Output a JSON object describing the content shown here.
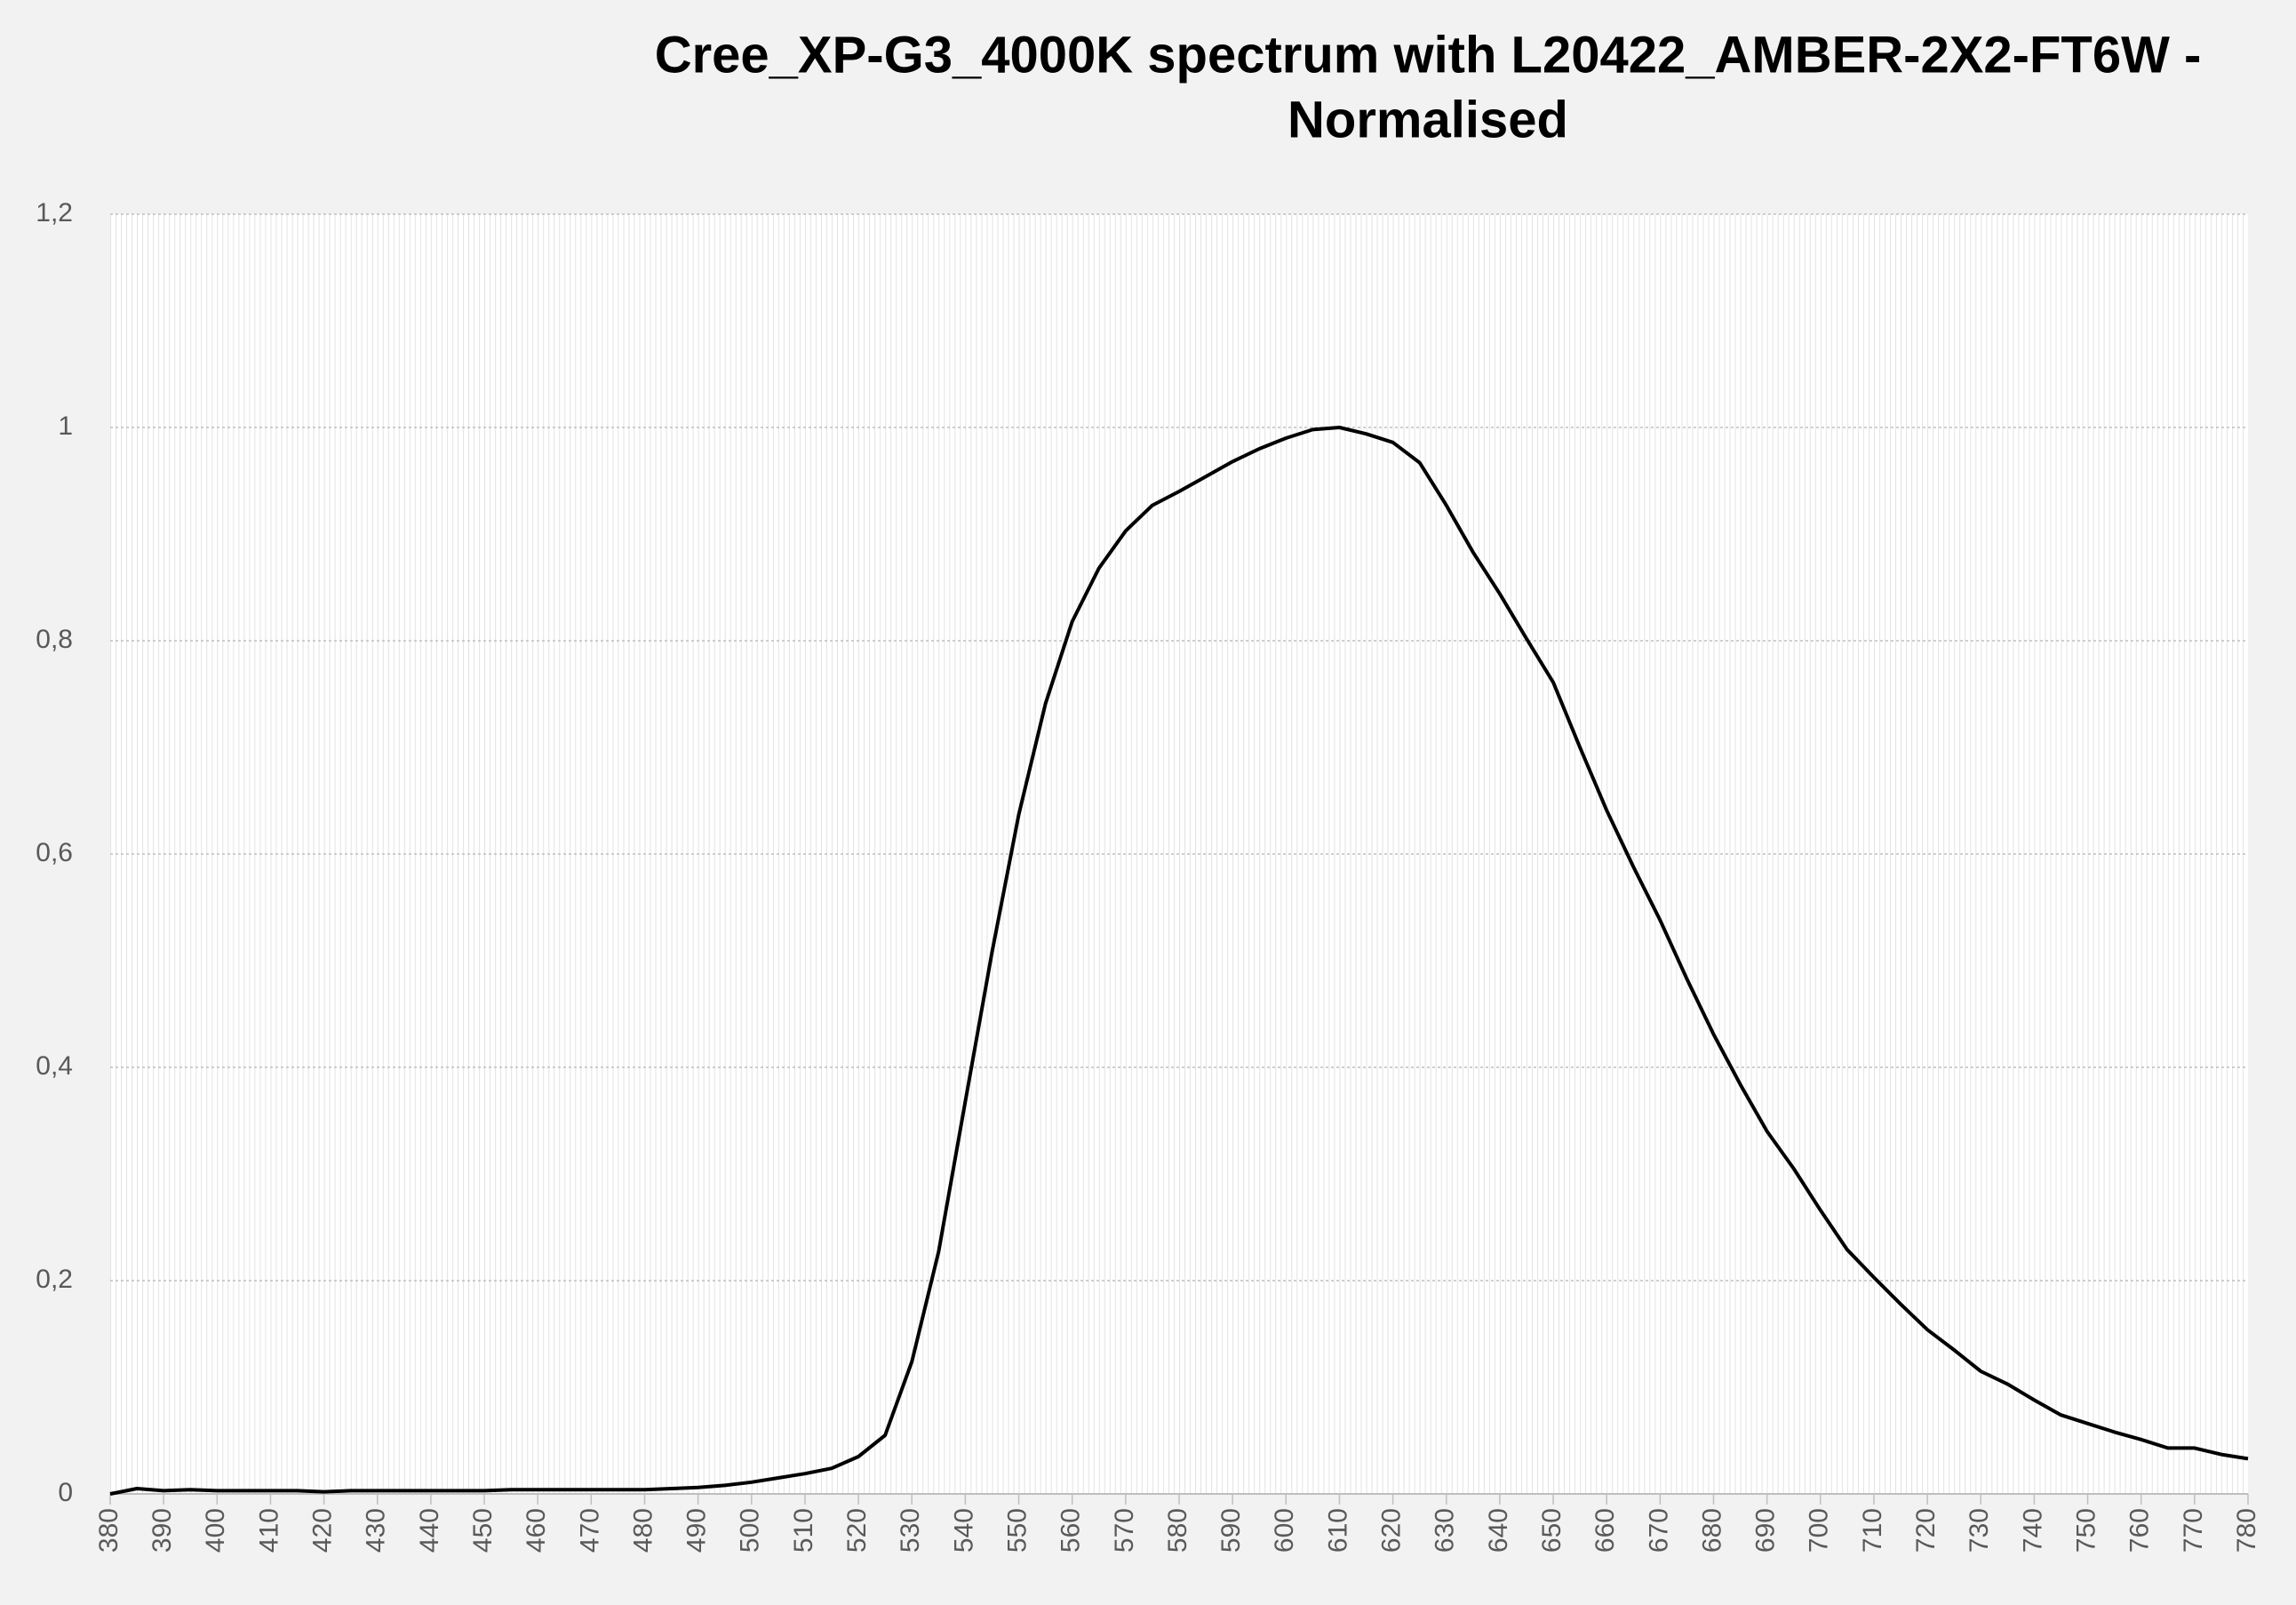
{
  "chart_data": {
    "type": "line",
    "title": [
      "Cree_XP-G3_4000K spectrum with L20422_AMBER-2X2-FT6W -",
      "Normalised"
    ],
    "x": [
      380,
      385,
      390,
      395,
      400,
      405,
      410,
      415,
      420,
      425,
      430,
      435,
      440,
      445,
      450,
      455,
      460,
      465,
      470,
      475,
      480,
      485,
      490,
      495,
      500,
      505,
      510,
      515,
      520,
      525,
      530,
      535,
      540,
      545,
      550,
      555,
      560,
      565,
      570,
      575,
      580,
      585,
      590,
      595,
      600,
      605,
      610,
      615,
      620,
      625,
      630,
      635,
      640,
      645,
      650,
      655,
      660,
      665,
      670,
      675,
      680,
      685,
      690,
      695,
      700,
      705,
      710,
      715,
      720,
      725,
      730,
      735,
      740,
      745,
      750,
      755,
      760,
      765,
      770,
      775,
      780
    ],
    "series": [
      {
        "name": "Normalised",
        "color": "#000000",
        "values": [
          0,
          0.005,
          0.003,
          0.004,
          0.003,
          0.003,
          0.003,
          0.003,
          0.002,
          0.003,
          0.003,
          0.003,
          0.003,
          0.003,
          0.003,
          0.004,
          0.004,
          0.004,
          0.004,
          0.004,
          0.004,
          0.005,
          0.006,
          0.008,
          0.011,
          0.015,
          0.019,
          0.024,
          0.035,
          0.055,
          0.124,
          0.227,
          0.368,
          0.508,
          0.637,
          0.741,
          0.818,
          0.868,
          0.903,
          0.927,
          0.94,
          0.954,
          0.968,
          0.98,
          0.99,
          0.998,
          1.0,
          0.994,
          0.986,
          0.967,
          0.927,
          0.883,
          0.844,
          0.802,
          0.761,
          0.7,
          0.641,
          0.588,
          0.538,
          0.483,
          0.431,
          0.384,
          0.34,
          0.305,
          0.266,
          0.229,
          0.203,
          0.178,
          0.154,
          0.135,
          0.115,
          0.103,
          0.088,
          0.074,
          0.066,
          0.058,
          0.051,
          0.043,
          0.043,
          0.037,
          0.033
        ]
      }
    ],
    "xlim": [
      380,
      780
    ],
    "xticks": [
      380,
      390,
      400,
      410,
      420,
      430,
      440,
      450,
      460,
      470,
      480,
      490,
      500,
      510,
      520,
      530,
      540,
      550,
      560,
      570,
      580,
      590,
      600,
      610,
      620,
      630,
      640,
      650,
      660,
      670,
      680,
      690,
      700,
      710,
      720,
      730,
      740,
      750,
      760,
      770,
      780
    ],
    "ylim": [
      0,
      1.2
    ],
    "yticks": [
      0,
      {
        "value": 0.2,
        "label": "0,2"
      },
      {
        "value": 0.4,
        "label": "0,4"
      },
      {
        "value": 0.6,
        "label": "0,6"
      },
      {
        "value": 0.8,
        "label": "0,8"
      },
      1,
      {
        "value": 1.2,
        "label": "1,2"
      }
    ],
    "grid": true
  }
}
